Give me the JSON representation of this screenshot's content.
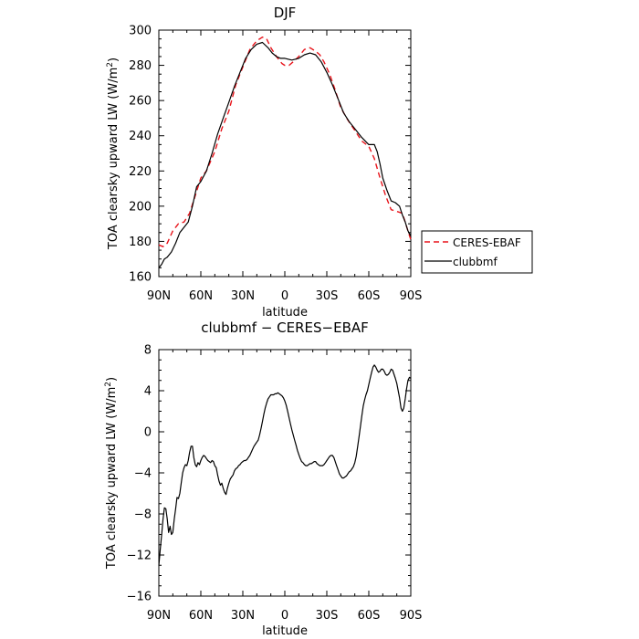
{
  "chart_data": [
    {
      "type": "line",
      "title": "DJF",
      "xlabel": "latitude",
      "ylabel": "TOA clearsky upward LW (W/m²)",
      "ylabel_main": "TOA clearsky upward LW (W/m",
      "ylabel_sup": "2",
      "ylabel_close": ")",
      "xlim": [
        -90,
        90
      ],
      "ylim": [
        160,
        300
      ],
      "x_ticks": [
        -90,
        -60,
        -30,
        0,
        30,
        60,
        90
      ],
      "x_tick_labels": [
        "90N",
        "60N",
        "30N",
        "0",
        "30S",
        "60S",
        "90S"
      ],
      "y_ticks": [
        160,
        180,
        200,
        220,
        240,
        260,
        280,
        300
      ],
      "y_tick_labels": [
        "160",
        "180",
        "200",
        "220",
        "240",
        "260",
        "280",
        "300"
      ],
      "grid": false,
      "legend": "right",
      "series": [
        {
          "name": "CERES-EBAF",
          "color": "#e8141b",
          "dash": "dashed",
          "x": [
            -90,
            -87,
            -84,
            -80,
            -76,
            -72,
            -68,
            -64,
            -60,
            -56,
            -50,
            -45,
            -40,
            -35,
            -30,
            -25,
            -20,
            -16,
            -13,
            -10,
            -6,
            -2,
            0,
            3,
            6,
            10,
            14,
            18,
            22,
            25,
            28,
            32,
            36,
            40,
            45,
            50,
            55,
            60,
            64,
            68,
            72,
            76,
            80,
            84,
            88,
            90
          ],
          "values": [
            178,
            177,
            179,
            186,
            190,
            191,
            196,
            206,
            216,
            220,
            231,
            244,
            254,
            269,
            279,
            289,
            294,
            296,
            295,
            290,
            285,
            281,
            280,
            280,
            282,
            285,
            289,
            290,
            288,
            286,
            282,
            275,
            266,
            256,
            249,
            243,
            237,
            234,
            227,
            216,
            206,
            198,
            197,
            196,
            186,
            181
          ]
        },
        {
          "name": "clubbmf",
          "color": "#000000",
          "dash": "solid",
          "x": [
            -90,
            -88,
            -86,
            -84,
            -81,
            -78,
            -75,
            -72,
            -69,
            -66,
            -63,
            -60,
            -56,
            -52,
            -48,
            -44,
            -40,
            -36,
            -32,
            -28,
            -24,
            -20,
            -16,
            -12,
            -9,
            -6,
            -3,
            0,
            5,
            10,
            14,
            18,
            22,
            26,
            30,
            34,
            38,
            42,
            46,
            50,
            55,
            60,
            64,
            66,
            68,
            70,
            73,
            76,
            79,
            82,
            84,
            86,
            88,
            90
          ],
          "values": [
            165,
            167,
            170,
            171,
            174,
            179,
            185,
            188,
            191,
            200,
            211,
            214,
            220,
            230,
            241,
            250,
            259,
            268,
            276,
            284,
            289,
            292,
            293,
            290,
            287,
            285,
            284,
            284,
            283,
            284,
            286,
            287,
            286,
            282,
            276,
            269,
            261,
            253,
            248,
            244,
            239,
            235,
            235,
            231,
            224,
            216,
            209,
            203,
            202,
            200,
            195,
            191,
            186,
            183
          ]
        }
      ]
    },
    {
      "type": "line",
      "title": "clubbmf − CERES−EBAF",
      "xlabel": "latitude",
      "ylabel": "TOA clearsky upward LW (W/m²)",
      "ylabel_main": "TOA clearsky upward LW (W/m",
      "ylabel_sup": "2",
      "ylabel_close": ")",
      "xlim": [
        -90,
        90
      ],
      "ylim": [
        -16,
        8
      ],
      "x_ticks": [
        -90,
        -60,
        -30,
        0,
        30,
        60,
        90
      ],
      "x_tick_labels": [
        "90N",
        "60N",
        "30N",
        "0",
        "30S",
        "60S",
        "90S"
      ],
      "y_ticks": [
        -16,
        -12,
        -8,
        -4,
        0,
        4,
        8
      ],
      "y_tick_labels": [
        "−16",
        "−12",
        "−8",
        "−4",
        "0",
        "4",
        "8"
      ],
      "grid": false,
      "series": [
        {
          "color": "#000000",
          "dash": "solid",
          "x": [
            -90,
            -89,
            -88,
            -87,
            -86,
            -85,
            -84,
            -83,
            -82,
            -81,
            -80,
            -79,
            -78,
            -77,
            -76,
            -75,
            -74,
            -73,
            -72,
            -71,
            -70,
            -69,
            -68,
            -67,
            -66,
            -65,
            -64,
            -63,
            -62,
            -61,
            -60,
            -59,
            -58,
            -57,
            -56,
            -55,
            -54,
            -53,
            -52,
            -51,
            -50,
            -49,
            -48,
            -47,
            -46,
            -45,
            -44,
            -43,
            -42,
            -41,
            -40,
            -39,
            -38,
            -37,
            -36,
            -35,
            -34,
            -33,
            -32,
            -31,
            -30,
            -29,
            -28,
            -27,
            -26,
            -25,
            -24,
            -23,
            -22,
            -21,
            -20,
            -19,
            -18,
            -17,
            -16,
            -15,
            -14,
            -13,
            -12,
            -11,
            -10,
            -9,
            -8,
            -7,
            -6,
            -5,
            -4,
            -3,
            -2,
            -1,
            0,
            1,
            2,
            3,
            4,
            5,
            6,
            7,
            8,
            9,
            10,
            11,
            12,
            13,
            14,
            15,
            16,
            17,
            18,
            19,
            20,
            21,
            22,
            23,
            24,
            25,
            26,
            27,
            28,
            29,
            30,
            31,
            32,
            33,
            34,
            35,
            36,
            37,
            38,
            39,
            40,
            41,
            42,
            43,
            44,
            45,
            46,
            47,
            48,
            49,
            50,
            51,
            52,
            53,
            54,
            55,
            56,
            57,
            58,
            59,
            60,
            61,
            62,
            63,
            64,
            65,
            66,
            67,
            68,
            69,
            70,
            71,
            72,
            73,
            74,
            75,
            76,
            77,
            78,
            79,
            80,
            81,
            82,
            83,
            84,
            85,
            86,
            87,
            88,
            89,
            90
          ],
          "values": [
            -13.0,
            -11.5,
            -10.0,
            -8.5,
            -7.4,
            -7.5,
            -8.5,
            -9.8,
            -9.2,
            -10.0,
            -9.8,
            -8.5,
            -7.5,
            -6.4,
            -6.5,
            -6.0,
            -5.0,
            -4.0,
            -3.5,
            -3.2,
            -3.3,
            -2.8,
            -2.0,
            -1.4,
            -1.4,
            -2.5,
            -3.2,
            -3.4,
            -3.0,
            -3.2,
            -2.8,
            -2.5,
            -2.3,
            -2.4,
            -2.6,
            -2.8,
            -2.9,
            -3.0,
            -2.8,
            -2.9,
            -3.3,
            -3.5,
            -4.2,
            -4.8,
            -5.2,
            -5.0,
            -5.5,
            -5.9,
            -6.1,
            -5.5,
            -5.0,
            -4.6,
            -4.4,
            -4.2,
            -3.8,
            -3.6,
            -3.5,
            -3.3,
            -3.2,
            -3.0,
            -2.9,
            -2.8,
            -2.8,
            -2.7,
            -2.5,
            -2.3,
            -2.0,
            -1.7,
            -1.4,
            -1.2,
            -1.0,
            -0.8,
            -0.3,
            0.3,
            1.0,
            1.7,
            2.3,
            2.8,
            3.2,
            3.4,
            3.6,
            3.6,
            3.6,
            3.7,
            3.7,
            3.8,
            3.7,
            3.6,
            3.5,
            3.3,
            3.0,
            2.6,
            2.0,
            1.4,
            0.8,
            0.2,
            -0.3,
            -0.8,
            -1.3,
            -1.8,
            -2.2,
            -2.6,
            -2.9,
            -3.0,
            -3.2,
            -3.3,
            -3.3,
            -3.2,
            -3.1,
            -3.1,
            -3.0,
            -2.9,
            -2.9,
            -3.1,
            -3.2,
            -3.3,
            -3.3,
            -3.3,
            -3.2,
            -3.0,
            -2.8,
            -2.6,
            -2.4,
            -2.3,
            -2.3,
            -2.5,
            -2.9,
            -3.3,
            -3.7,
            -4.1,
            -4.3,
            -4.5,
            -4.5,
            -4.4,
            -4.3,
            -4.1,
            -3.9,
            -3.8,
            -3.6,
            -3.4,
            -3.0,
            -2.4,
            -1.5,
            -0.5,
            0.5,
            1.5,
            2.5,
            3.1,
            3.6,
            4.0,
            4.6,
            5.2,
            5.8,
            6.3,
            6.5,
            6.3,
            6.0,
            5.8,
            5.9,
            6.1,
            6.1,
            5.9,
            5.6,
            5.5,
            5.6,
            5.8,
            6.1,
            6.0,
            5.6,
            5.2,
            4.7,
            4.0,
            3.3,
            2.3,
            2.0,
            2.3,
            3.2,
            4.2,
            5.0,
            5.3,
            5.2
          ]
        }
      ]
    }
  ]
}
